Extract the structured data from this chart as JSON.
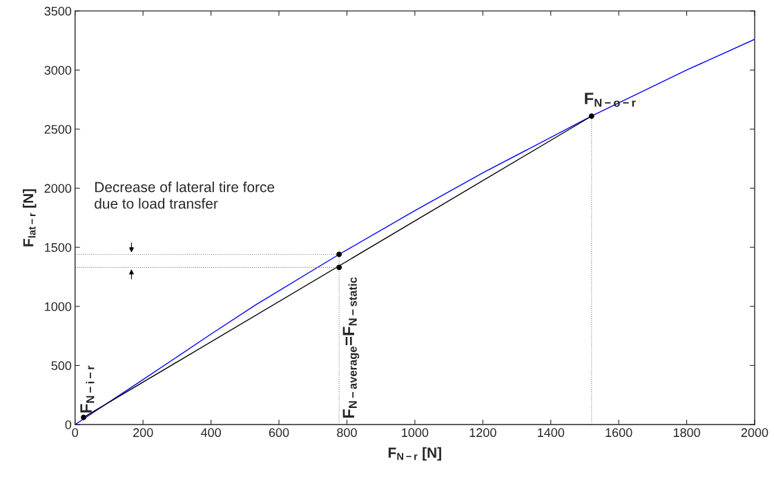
{
  "chart_data": {
    "type": "line",
    "xlabel": "F$_{N−r}$ [N]",
    "ylabel": "F$_{lat−r}$ [N]",
    "xlim": [
      0,
      2000
    ],
    "xticks": [
      0,
      200,
      400,
      600,
      800,
      1000,
      1200,
      1400,
      1600,
      1800,
      2000
    ],
    "ylim": [
      0,
      3500
    ],
    "yticks": [
      0,
      500,
      1000,
      1500,
      2000,
      2500,
      3000,
      3500
    ],
    "grid": false,
    "series": [
      {
        "color": "#0000ff",
        "x": [
          0,
          200,
          400,
          530,
          777,
          1000,
          1200,
          1520,
          1800,
          2000
        ],
        "values": [
          0,
          380,
          765,
          1010,
          1440,
          1810,
          2130,
          2610,
          3000,
          3260
        ]
      },
      {
        "color": "#000000",
        "x": [
          25,
          1520
        ],
        "values": [
          60,
          2610
        ]
      },
      {
        "color": "#808080",
        "line_style": "dotted",
        "x": [
          777,
          777
        ],
        "values": [
          0,
          1440
        ]
      },
      {
        "color": "#808080",
        "line_style": "dotted",
        "x": [
          1520,
          1520
        ],
        "values": [
          0,
          2610
        ]
      },
      {
        "color": "#808080",
        "line_style": "dotted",
        "x": [
          0,
          777
        ],
        "values": [
          1440,
          1440
        ]
      },
      {
        "color": "#808080",
        "line_style": "dotted",
        "x": [
          0,
          777
        ],
        "values": [
          1330,
          1330
        ]
      },
      {
        "type": "scatter",
        "color": "#000000",
        "marker": "circle",
        "x": [
          25,
          777,
          777,
          1520
        ],
        "values": [
          60,
          1330,
          1440,
          2610
        ]
      }
    ],
    "annotations": [
      {
        "text": "F$_{N−i−r}$",
        "x": 25,
        "y": 60
      },
      {
        "text": "F$_{N−o−r}$",
        "x": 1520,
        "y": 2610
      },
      {
        "text": "F$_{N−average}$=F$_{N−static}$",
        "x": 777,
        "y": 0
      },
      "Decrease of lateral tire force\ndue to load transfer"
    ]
  }
}
